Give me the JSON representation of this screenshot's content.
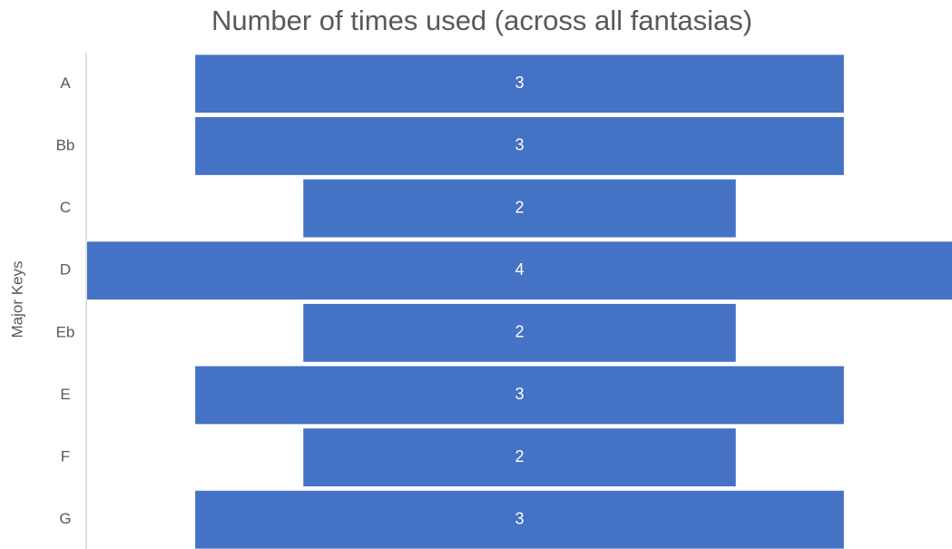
{
  "chart_data": {
    "type": "funnel",
    "title": "Number of times used (across all fantasias)",
    "y_label": "Major Keys",
    "categories": [
      "A",
      "Bb",
      "C",
      "D",
      "Eb",
      "E",
      "F",
      "G"
    ],
    "values": [
      3,
      3,
      2,
      4,
      2,
      3,
      2,
      3
    ],
    "color": "#4472c4"
  }
}
